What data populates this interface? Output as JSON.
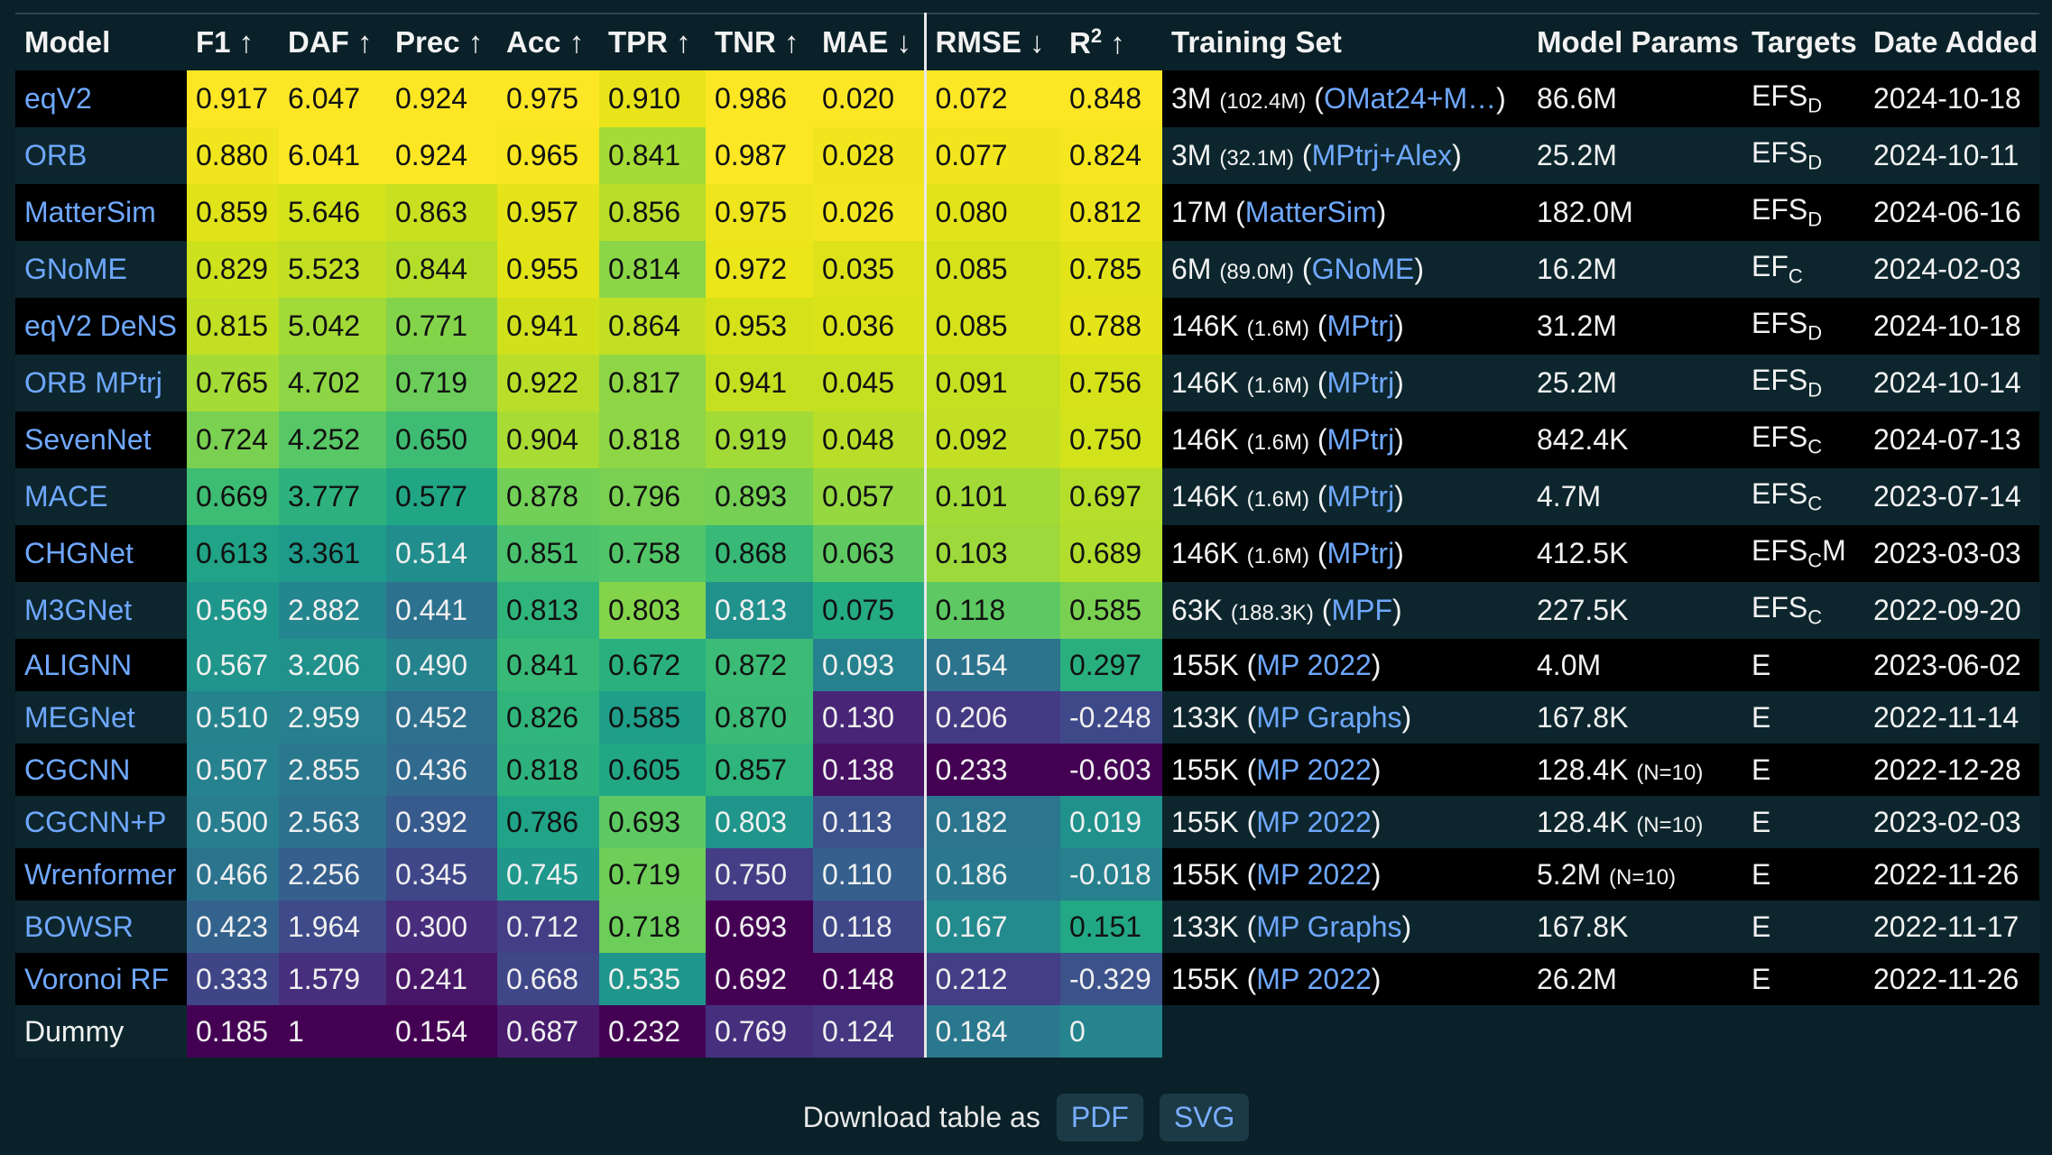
{
  "header": {
    "columns": [
      "Model",
      "F1 ↑",
      "DAF ↑",
      "Prec ↑",
      "Acc ↑",
      "TPR ↑",
      "TNR ↑",
      "MAE ↓",
      "RMSE ↓",
      "R",
      "Training Set",
      "Model Params",
      "Targets",
      "Date Added"
    ],
    "r2_sup": "2",
    "r2_arrow": " ↑"
  },
  "rows": [
    {
      "model": "eqV2",
      "is_link": true,
      "metrics": [
        "0.917",
        "6.047",
        "0.924",
        "0.975",
        "0.910",
        "0.986",
        "0.020",
        "0.072",
        "0.848"
      ],
      "colors": [
        "#fde725",
        "#fde725",
        "#fde725",
        "#fde725",
        "#e8e419",
        "#fde725",
        "#fde725",
        "#fde725",
        "#fde725"
      ],
      "train_n": "3M",
      "train_detail": "(102.4M)",
      "train_src": "OMat24+M…",
      "params": "86.6M",
      "params_note": "",
      "targets_base": "EFS",
      "targets_sub": "D",
      "targets_tail": "",
      "date": "2024-10-18"
    },
    {
      "model": "ORB",
      "is_link": true,
      "metrics": [
        "0.880",
        "6.041",
        "0.924",
        "0.965",
        "0.841",
        "0.987",
        "0.028",
        "0.077",
        "0.824"
      ],
      "colors": [
        "#f1e51d",
        "#fde725",
        "#fde725",
        "#f8e621",
        "#a5db36",
        "#fde725",
        "#f1e51d",
        "#f1e51d",
        "#f6e620"
      ],
      "train_n": "3M",
      "train_detail": "(32.1M)",
      "train_src": "MPtrj+Alex",
      "params": "25.2M",
      "params_note": "",
      "targets_base": "EFS",
      "targets_sub": "D",
      "targets_tail": "",
      "date": "2024-10-11"
    },
    {
      "model": "MatterSim",
      "is_link": true,
      "metrics": [
        "0.859",
        "5.646",
        "0.863",
        "0.957",
        "0.856",
        "0.975",
        "0.026",
        "0.080",
        "0.812"
      ],
      "colors": [
        "#dfe318",
        "#d2e21b",
        "#c8e020",
        "#e5e419",
        "#b8de29",
        "#efe51c",
        "#f4e61e",
        "#e2e418",
        "#efe51c"
      ],
      "train_n": "17M",
      "train_detail": "",
      "train_src": "MatterSim",
      "params": "182.0M",
      "params_note": "",
      "targets_base": "EFS",
      "targets_sub": "D",
      "targets_tail": "",
      "date": "2024-06-16"
    },
    {
      "model": "GNoME",
      "is_link": true,
      "metrics": [
        "0.829",
        "5.523",
        "0.844",
        "0.955",
        "0.814",
        "0.972",
        "0.035",
        "0.085",
        "0.785"
      ],
      "colors": [
        "#cde11d",
        "#c2df23",
        "#b5de2b",
        "#e2e418",
        "#8bd646",
        "#ebe51a",
        "#dde318",
        "#d5e21a",
        "#e2e418"
      ],
      "train_n": "6M",
      "train_detail": "(89.0M)",
      "train_src": "GNoME",
      "params": "16.2M",
      "params_note": "",
      "targets_base": "EF",
      "targets_sub": "C",
      "targets_tail": "",
      "date": "2024-02-03"
    },
    {
      "model": "eqV2 DeNS",
      "is_link": true,
      "metrics": [
        "0.815",
        "5.042",
        "0.771",
        "0.941",
        "0.864",
        "0.953",
        "0.036",
        "0.085",
        "0.788"
      ],
      "colors": [
        "#c2df23",
        "#a2da37",
        "#84d44b",
        "#d0e11c",
        "#c2df23",
        "#d5e21a",
        "#dae319",
        "#d5e21a",
        "#e5e419"
      ],
      "train_n": "146K",
      "train_detail": "(1.6M)",
      "train_src": "MPtrj",
      "params": "31.2M",
      "params_note": "",
      "targets_base": "EFS",
      "targets_sub": "D",
      "targets_tail": "",
      "date": "2024-10-18"
    },
    {
      "model": "ORB MPtrj",
      "is_link": true,
      "metrics": [
        "0.765",
        "4.702",
        "0.719",
        "0.922",
        "0.817",
        "0.941",
        "0.045",
        "0.091",
        "0.756"
      ],
      "colors": [
        "#a5db36",
        "#8ed645",
        "#6ccd5a",
        "#b8de29",
        "#8ed645",
        "#c5e021",
        "#c5e021",
        "#c5e021",
        "#d5e21a"
      ],
      "train_n": "146K",
      "train_detail": "(1.6M)",
      "train_src": "MPtrj",
      "params": "25.2M",
      "params_note": "",
      "targets_base": "EFS",
      "targets_sub": "D",
      "targets_tail": "",
      "date": "2024-10-14"
    },
    {
      "model": "SevenNet",
      "is_link": true,
      "metrics": [
        "0.724",
        "4.252",
        "0.650",
        "0.904",
        "0.818",
        "0.919",
        "0.048",
        "0.092",
        "0.750"
      ],
      "colors": [
        "#7ad151",
        "#58c765",
        "#3fbc73",
        "#a8db34",
        "#8ed645",
        "#a2da37",
        "#b8de29",
        "#c2df23",
        "#d2e21b"
      ],
      "train_n": "146K",
      "train_detail": "(1.6M)",
      "train_src": "MPtrj",
      "params": "842.4K",
      "params_note": "",
      "targets_base": "EFS",
      "targets_sub": "C",
      "targets_tail": "",
      "date": "2024-07-13"
    },
    {
      "model": "MACE",
      "is_link": true,
      "metrics": [
        "0.669",
        "3.777",
        "0.577",
        "0.878",
        "0.796",
        "0.893",
        "0.057",
        "0.101",
        "0.697"
      ],
      "colors": [
        "#3dbc74",
        "#2db27d",
        "#21a685",
        "#73d056",
        "#7ad151",
        "#75d054",
        "#95d840",
        "#a2da37",
        "#b5de2b"
      ],
      "train_n": "146K",
      "train_detail": "(1.6M)",
      "train_src": "MPtrj",
      "params": "4.7M",
      "params_note": "",
      "targets_base": "EFS",
      "targets_sub": "C",
      "targets_tail": "",
      "date": "2023-07-14"
    },
    {
      "model": "CHGNet",
      "is_link": true,
      "metrics": [
        "0.613",
        "3.361",
        "0.514",
        "0.851",
        "0.758",
        "0.868",
        "0.063",
        "0.103",
        "0.689"
      ],
      "colors": [
        "#20a386",
        "#1e9b8a",
        "#228d8d",
        "#4ac16d",
        "#52c569",
        "#38b977",
        "#5ec962",
        "#9dd93b",
        "#b2dd2d"
      ],
      "train_n": "146K",
      "train_detail": "(1.6M)",
      "train_src": "MPtrj",
      "params": "412.5K",
      "params_note": "",
      "targets_base": "EFS",
      "targets_sub": "C",
      "targets_tail": "M",
      "date": "2023-03-03"
    },
    {
      "model": "M3GNet",
      "is_link": true,
      "metrics": [
        "0.569",
        "2.882",
        "0.441",
        "0.813",
        "0.803",
        "0.813",
        "0.075",
        "0.118",
        "0.585"
      ],
      "colors": [
        "#1f968b",
        "#24868e",
        "#2c728e",
        "#2fb47c",
        "#84d44b",
        "#21918c",
        "#25ab82",
        "#5ec962",
        "#7ad151"
      ],
      "train_n": "63K",
      "train_detail": "(188.3K)",
      "train_src": "MPF",
      "params": "227.5K",
      "params_note": "",
      "targets_base": "EFS",
      "targets_sub": "C",
      "targets_tail": "",
      "date": "2022-09-20"
    },
    {
      "model": "ALIGNN",
      "is_link": true,
      "metrics": [
        "0.567",
        "3.206",
        "0.490",
        "0.841",
        "0.672",
        "0.872",
        "0.093",
        "0.154",
        "0.297"
      ],
      "colors": [
        "#1f958b",
        "#21918c",
        "#25838e",
        "#38b977",
        "#2ab07f",
        "#3bbb75",
        "#26818e",
        "#2c738e",
        "#29af7f"
      ],
      "train_n": "155K",
      "train_detail": "",
      "train_src": "MP 2022",
      "params": "4.0M",
      "params_note": "",
      "targets_base": "E",
      "targets_sub": "",
      "targets_tail": "",
      "date": "2023-06-02"
    },
    {
      "model": "MEGNet",
      "is_link": true,
      "metrics": [
        "0.510",
        "2.959",
        "0.452",
        "0.826",
        "0.585",
        "0.870",
        "0.130",
        "0.206",
        "-0.248"
      ],
      "colors": [
        "#25838e",
        "#27808e",
        "#2e6f8e",
        "#2fb47c",
        "#1f9e89",
        "#3aba76",
        "#482677",
        "#443a83",
        "#3e4989"
      ],
      "train_n": "133K",
      "train_detail": "",
      "train_src": "MP Graphs",
      "params": "167.8K",
      "params_note": "",
      "targets_base": "E",
      "targets_sub": "",
      "targets_tail": "",
      "date": "2022-11-14"
    },
    {
      "model": "CGCNN",
      "is_link": true,
      "metrics": [
        "0.507",
        "2.855",
        "0.436",
        "0.818",
        "0.605",
        "0.857",
        "0.138",
        "0.233",
        "-0.603"
      ],
      "colors": [
        "#26828e",
        "#2a788e",
        "#306a8e",
        "#2db27d",
        "#22a785",
        "#2fb47c",
        "#471063",
        "#440154",
        "#440154"
      ],
      "train_n": "155K",
      "train_detail": "",
      "train_src": "MP 2022",
      "params": "128.4K",
      "params_note": "(N=10)",
      "targets_base": "E",
      "targets_sub": "",
      "targets_tail": "",
      "date": "2022-12-28"
    },
    {
      "model": "CGCNN+P",
      "is_link": true,
      "metrics": [
        "0.500",
        "2.563",
        "0.392",
        "0.786",
        "0.693",
        "0.803",
        "0.113",
        "0.182",
        "0.019"
      ],
      "colors": [
        "#287d8e",
        "#2d718e",
        "#375b8d",
        "#20a386",
        "#5ec962",
        "#1f958b",
        "#3b528b",
        "#2b758e",
        "#21918c"
      ],
      "train_n": "155K",
      "train_detail": "",
      "train_src": "MP 2022",
      "params": "128.4K",
      "params_note": "(N=10)",
      "targets_base": "E",
      "targets_sub": "",
      "targets_tail": "",
      "date": "2023-02-03"
    },
    {
      "model": "Wrenformer",
      "is_link": true,
      "metrics": [
        "0.466",
        "2.256",
        "0.345",
        "0.745",
        "0.719",
        "0.750",
        "0.110",
        "0.186",
        "-0.018"
      ],
      "colors": [
        "#2c738e",
        "#355f8d",
        "#3f4788",
        "#1f978b",
        "#6ece58",
        "#433e85",
        "#35608d",
        "#2a788e",
        "#27808e"
      ],
      "train_n": "155K",
      "train_detail": "",
      "train_src": "MP 2022",
      "params": "5.2M",
      "params_note": "(N=10)",
      "targets_base": "E",
      "targets_sub": "",
      "targets_tail": "",
      "date": "2022-11-26"
    },
    {
      "model": "BOWSR",
      "is_link": true,
      "metrics": [
        "0.423",
        "1.964",
        "0.300",
        "0.712",
        "0.718",
        "0.693",
        "0.118",
        "0.167",
        "0.151"
      ],
      "colors": [
        "#33638d",
        "#3e4a89",
        "#472d7b",
        "#433e85",
        "#6ccd5a",
        "#440154",
        "#3f4788",
        "#238a8d",
        "#22a884"
      ],
      "train_n": "133K",
      "train_detail": "",
      "train_src": "MP Graphs",
      "params": "167.8K",
      "params_note": "",
      "targets_base": "E",
      "targets_sub": "",
      "targets_tail": "",
      "date": "2022-11-17"
    },
    {
      "model": "Voronoi RF",
      "is_link": true,
      "metrics": [
        "0.333",
        "1.579",
        "0.241",
        "0.668",
        "0.535",
        "0.692",
        "0.148",
        "0.212",
        "-0.329"
      ],
      "colors": [
        "#404588",
        "#472f7d",
        "#481668",
        "#3f4788",
        "#1f968b",
        "#440154",
        "#440154",
        "#433e85",
        "#3b528b"
      ],
      "train_n": "155K",
      "train_detail": "",
      "train_src": "MP 2022",
      "params": "26.2M",
      "params_note": "",
      "targets_base": "E",
      "targets_sub": "",
      "targets_tail": "",
      "date": "2022-11-26"
    },
    {
      "model": "Dummy",
      "is_link": false,
      "metrics": [
        "0.185",
        "1",
        "0.154",
        "0.687",
        "0.232",
        "0.769",
        "0.124",
        "0.184",
        "0"
      ],
      "colors": [
        "#440154",
        "#440154",
        "#440154",
        "#481b6d",
        "#440154",
        "#46307e",
        "#453781",
        "#2a788e",
        "#25848e"
      ],
      "train_n": "",
      "train_detail": "",
      "train_src": "",
      "params": "",
      "params_note": "",
      "targets_base": "",
      "targets_sub": "",
      "targets_tail": "",
      "date": ""
    }
  ],
  "footer": {
    "label": "Download table as",
    "pdf": "PDF",
    "svg": "SVG"
  }
}
